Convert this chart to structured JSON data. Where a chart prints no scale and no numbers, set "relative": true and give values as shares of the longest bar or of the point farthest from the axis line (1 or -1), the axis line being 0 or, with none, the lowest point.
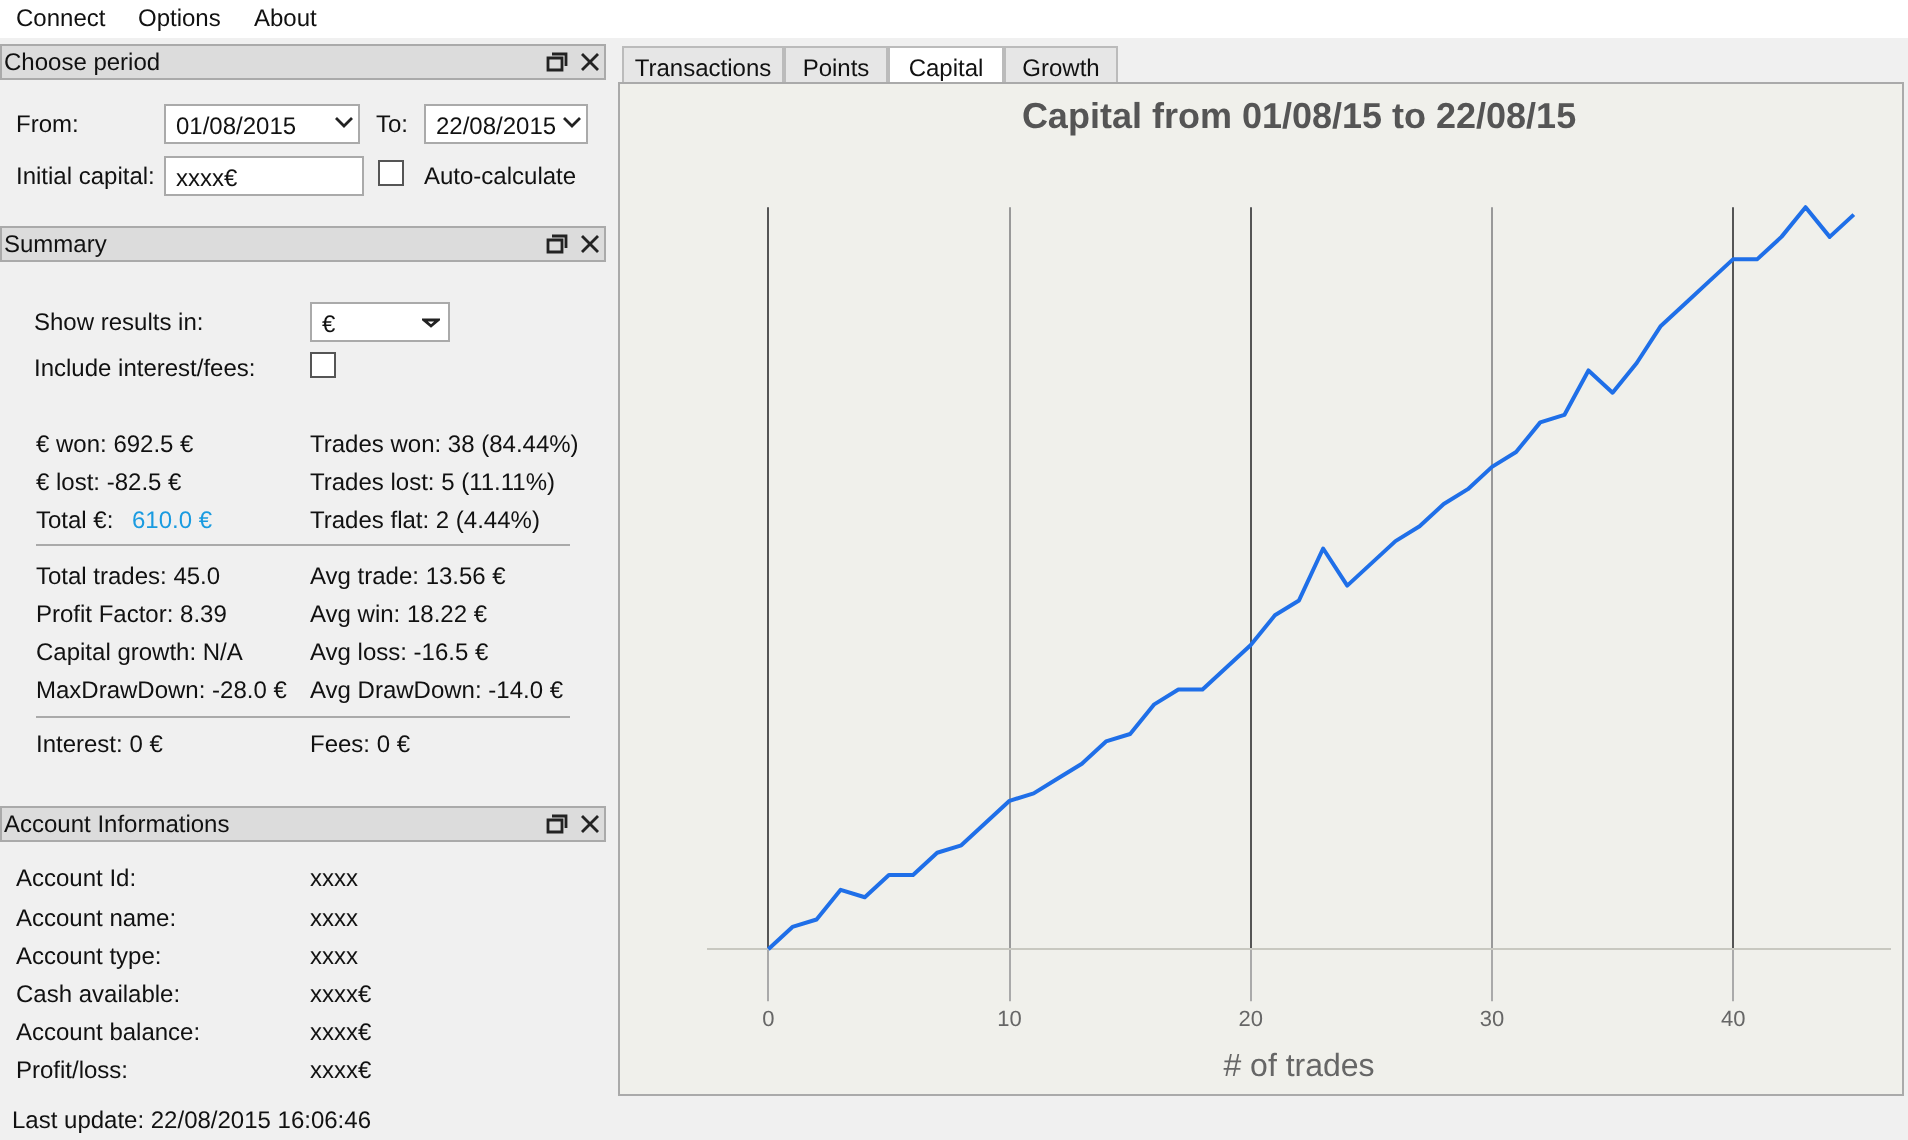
{
  "chart_data": [
    {
      "type": "other",
      "annotations": [
        "Connect",
        "Options",
        "About",
        "Choose period",
        "From:",
        "01/08/2015",
        "To:",
        "22/08/2015",
        "Initial capital:",
        "xxxx€",
        "Auto-calculate",
        "Summary",
        "Show results in:",
        "€",
        "Include interest/fees:",
        "€ won: 692.5 €",
        "Trades won: 38 (84.44%)",
        "€ lost: -82.5 €",
        "Trades lost: 5 (11.11%)",
        "Total €:",
        "610.0 €",
        "Trades flat: 2 (4.44%)",
        "Total trades: 45.0",
        "Avg trade: 13.56 €",
        "Profit Factor: 8.39",
        "Avg win: 18.22 €",
        "Capital growth: N/A",
        "Avg loss: -16.5 €",
        "MaxDrawDown: -28.0 €",
        "Avg DrawDown: -14.0 €",
        "Interest: 0 €",
        "Fees: 0 €",
        "Account Informations",
        "Account Id:",
        "xxxx",
        "Account name:",
        "xxxx",
        "Account type:",
        "xxxx",
        "Cash available:",
        "xxxx€",
        "Account balance:",
        "xxxx€",
        "Profit/loss:",
        "xxxx€",
        "Last update: 22/08/2015 16:06:46",
        "Transactions",
        "Points",
        "Capital",
        "Growth"
      ]
    },
    {
      "type": "line",
      "title": "Capital from 01/08/15 to 22/08/15",
      "xlabel": "# of trades",
      "relative": true,
      "grid": "x",
      "legend": false,
      "xlim": [
        -2.5,
        46.5
      ],
      "xticks": [
        0,
        10,
        20,
        30,
        40
      ],
      "x": [
        0,
        1,
        2,
        3,
        4,
        5,
        6,
        7,
        8,
        9,
        10,
        11,
        12,
        13,
        14,
        15,
        16,
        17,
        18,
        19,
        20,
        21,
        22,
        23,
        24,
        25,
        26,
        27,
        28,
        29,
        30,
        31,
        32,
        33,
        34,
        35,
        36,
        37,
        38,
        39,
        40,
        41,
        42,
        43,
        44,
        45
      ],
      "series": [
        {
          "color": "#1f6fe8",
          "values": [
            0,
            0.03,
            0.04,
            0.08,
            0.07,
            0.1,
            0.1,
            0.13,
            0.14,
            0.17,
            0.2,
            0.21,
            0.23,
            0.25,
            0.28,
            0.29,
            0.33,
            0.35,
            0.35,
            0.38,
            0.41,
            0.45,
            0.47,
            0.54,
            0.49,
            0.52,
            0.55,
            0.57,
            0.6,
            0.62,
            0.65,
            0.67,
            0.71,
            0.72,
            0.78,
            0.75,
            0.79,
            0.84,
            0.87,
            0.9,
            0.93,
            0.93,
            0.96,
            1,
            0.96,
            0.99
          ]
        }
      ]
    }
  ]
}
